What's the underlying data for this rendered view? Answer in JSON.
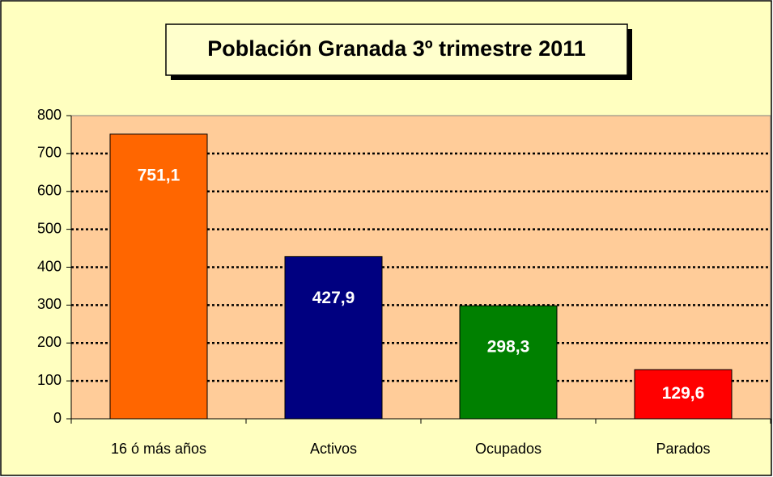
{
  "chart_data": {
    "type": "bar",
    "title": "Población Granada 3º trimestre 2011",
    "categories": [
      "16 ó más años",
      "Activos",
      "Ocupados",
      "Parados"
    ],
    "values": [
      751.1,
      427.9,
      298.3,
      129.6
    ],
    "value_labels": [
      "751,1",
      "427,9",
      "298,3",
      "129,6"
    ],
    "colors": [
      "#ff6600",
      "#000080",
      "#008000",
      "#ff0000"
    ],
    "ylim": [
      0,
      800
    ],
    "yticks": [
      0,
      100,
      200,
      300,
      400,
      500,
      600,
      700,
      800
    ],
    "grid": true
  }
}
